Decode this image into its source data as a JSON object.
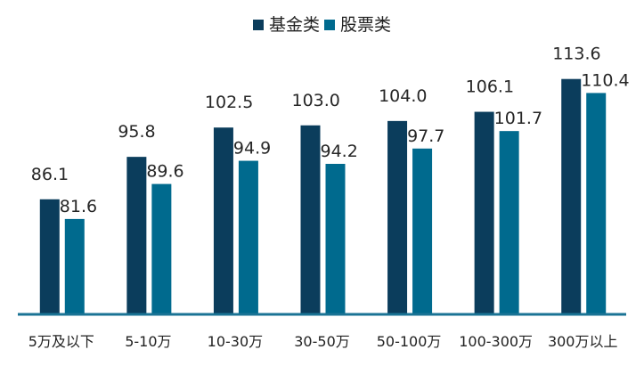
{
  "chart_data": {
    "type": "bar",
    "categories": [
      "5万及以下",
      "5-10万",
      "10-30万",
      "30-50万",
      "50-100万",
      "100-300万",
      "300万以上"
    ],
    "series": [
      {
        "name": "基金类",
        "values": [
          86.1,
          95.8,
          102.5,
          103.0,
          104.0,
          106.1,
          113.6
        ],
        "color": "#0b3d5c",
        "labels": [
          "86.1",
          "95.8",
          "102.5",
          "103.0",
          "104.0",
          "106.1",
          "113.6"
        ]
      },
      {
        "name": "股票类",
        "values": [
          81.6,
          89.6,
          94.9,
          94.2,
          97.7,
          101.7,
          110.4
        ],
        "color": "#006a8e",
        "labels": [
          "81.6",
          "89.6",
          "94.9",
          "94.2",
          "97.7",
          "101.7",
          "110.4"
        ]
      }
    ],
    "title": "",
    "xlabel": "",
    "ylabel": "",
    "ylim": [
      60,
      117
    ],
    "legend_position": "top-center",
    "grid": false,
    "axis_color": "#1a7394"
  }
}
